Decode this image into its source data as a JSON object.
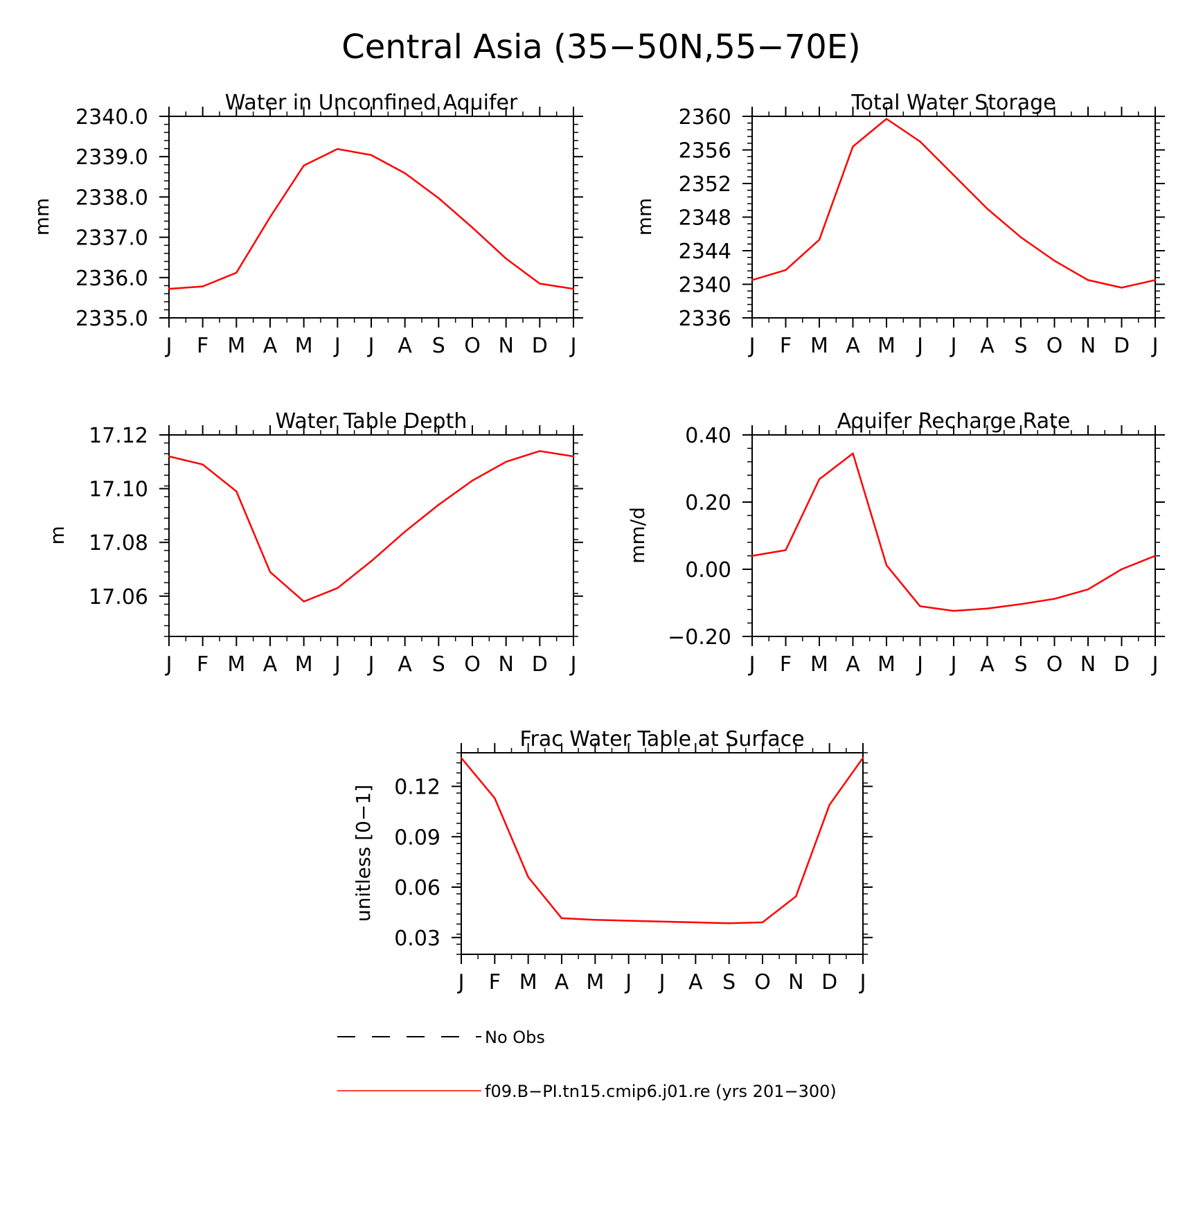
{
  "figure": {
    "title": "Central Asia (35−50N,55−70E)"
  },
  "chart_data": [
    {
      "id": "aquifer",
      "type": "line",
      "title": "Water in Unconfined Aquifer",
      "xlabel": "",
      "ylabel": "mm",
      "categories": [
        "J",
        "F",
        "M",
        "A",
        "M",
        "J",
        "J",
        "A",
        "S",
        "O",
        "N",
        "D",
        "J"
      ],
      "ylim": [
        2335.0,
        2340.0
      ],
      "yticks": [
        2335.0,
        2336.0,
        2337.0,
        2338.0,
        2339.0,
        2340.0
      ],
      "ytick_labels": [
        "2335.0",
        "2336.0",
        "2337.0",
        "2338.0",
        "2339.0",
        "2340.0"
      ],
      "series": [
        {
          "values": [
            2335.72,
            2335.78,
            2336.12,
            2337.5,
            2338.78,
            2339.19,
            2339.04,
            2338.59,
            2337.97,
            2337.24,
            2336.47,
            2335.85,
            2335.72
          ],
          "color": "#ff0000"
        }
      ]
    },
    {
      "id": "tws",
      "type": "line",
      "title": "Total Water Storage",
      "xlabel": "",
      "ylabel": "mm",
      "categories": [
        "J",
        "F",
        "M",
        "A",
        "M",
        "J",
        "J",
        "A",
        "S",
        "O",
        "N",
        "D",
        "J"
      ],
      "ylim": [
        2336,
        2360
      ],
      "yticks": [
        2336,
        2340,
        2344,
        2348,
        2352,
        2356,
        2360
      ],
      "ytick_labels": [
        "2336",
        "2340",
        "2344",
        "2348",
        "2352",
        "2356",
        "2360"
      ],
      "series": [
        {
          "values": [
            2340.5,
            2341.7,
            2345.3,
            2356.4,
            2359.7,
            2357.0,
            2353.0,
            2349.0,
            2345.6,
            2342.8,
            2340.5,
            2339.6,
            2340.5
          ],
          "color": "#ff0000"
        }
      ]
    },
    {
      "id": "wtd",
      "type": "line",
      "title": "Water Table Depth",
      "xlabel": "",
      "ylabel": "m",
      "categories": [
        "J",
        "F",
        "M",
        "A",
        "M",
        "J",
        "J",
        "A",
        "S",
        "O",
        "N",
        "D",
        "J"
      ],
      "ylim": [
        17.045,
        17.12
      ],
      "yticks": [
        17.06,
        17.08,
        17.1,
        17.12
      ],
      "ytick_labels": [
        "17.06",
        "17.08",
        "17.10",
        "17.12"
      ],
      "series": [
        {
          "values": [
            17.112,
            17.109,
            17.099,
            17.069,
            17.058,
            17.063,
            17.073,
            17.084,
            17.094,
            17.103,
            17.11,
            17.114,
            17.112
          ],
          "color": "#ff0000"
        }
      ]
    },
    {
      "id": "recharge",
      "type": "line",
      "title": "Aquifer Recharge Rate",
      "xlabel": "",
      "ylabel": "mm/d",
      "categories": [
        "J",
        "F",
        "M",
        "A",
        "M",
        "J",
        "J",
        "A",
        "S",
        "O",
        "N",
        "D",
        "J"
      ],
      "ylim": [
        -0.2,
        0.4
      ],
      "yticks": [
        -0.2,
        0.0,
        0.2,
        0.4
      ],
      "ytick_labels": [
        "−0.20",
        "0.00",
        "0.20",
        "0.40"
      ],
      "series": [
        {
          "values": [
            0.04,
            0.057,
            0.268,
            0.345,
            0.012,
            -0.11,
            -0.124,
            -0.117,
            -0.104,
            -0.088,
            -0.06,
            0.0,
            0.04
          ],
          "color": "#ff0000"
        }
      ]
    },
    {
      "id": "frac",
      "type": "line",
      "title": "Frac Water Table at Surface",
      "xlabel": "",
      "ylabel": "unitless [0−1]",
      "categories": [
        "J",
        "F",
        "M",
        "A",
        "M",
        "J",
        "J",
        "A",
        "S",
        "O",
        "N",
        "D",
        "J"
      ],
      "ylim": [
        0.02,
        0.14
      ],
      "yticks": [
        0.03,
        0.06,
        0.09,
        0.12
      ],
      "ytick_labels": [
        "0.03",
        "0.06",
        "0.09",
        "0.12"
      ],
      "series": [
        {
          "values": [
            0.137,
            0.113,
            0.066,
            0.0415,
            0.0405,
            0.04,
            0.0395,
            0.039,
            0.0385,
            0.039,
            0.0545,
            0.109,
            0.137
          ],
          "color": "#ff0000"
        }
      ]
    }
  ],
  "legend": {
    "items": [
      {
        "label": "No Obs",
        "style": "dashed",
        "color": "#000000"
      },
      {
        "label": "f09.B−PI.tn15.cmip6.j01.re (yrs 201−300)",
        "style": "solid",
        "color": "#ff0000"
      }
    ]
  }
}
